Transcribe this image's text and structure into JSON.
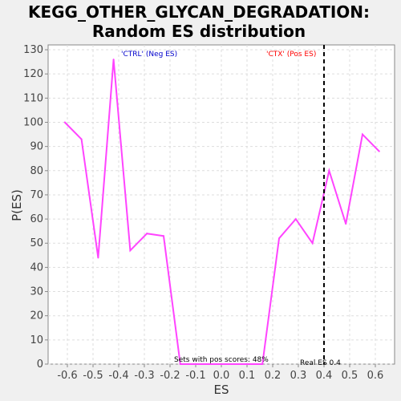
{
  "chart_data": {
    "type": "line",
    "title_line1": "KEGG_OTHER_GLYCAN_DEGRADATION:",
    "title_line2": "Random ES distribution",
    "xlabel": "ES",
    "ylabel": "P(ES)",
    "xlim": [
      -0.675,
      0.675
    ],
    "ylim": [
      0,
      132
    ],
    "xticks": [
      -0.6,
      -0.5,
      -0.4,
      -0.3,
      -0.2,
      -0.1,
      0.0,
      0.1,
      0.2,
      0.3,
      0.4,
      0.5,
      0.6
    ],
    "xtick_labels": [
      "-0.6",
      "-0.5",
      "-0.4",
      "-0.3",
      "-0.2",
      "-0.1",
      "0.0",
      "0.1",
      "0.2",
      "0.3",
      "0.4",
      "0.5",
      "0.6"
    ],
    "yticks": [
      0,
      10,
      20,
      30,
      40,
      50,
      60,
      70,
      80,
      90,
      100,
      110,
      120,
      130
    ],
    "grid": true,
    "series": [
      {
        "color": "#ff44ff",
        "x": [
          -0.61,
          -0.545,
          -0.48,
          -0.42,
          -0.355,
          -0.29,
          -0.225,
          -0.16,
          -0.095,
          -0.03,
          0.035,
          0.1,
          0.16,
          0.225,
          0.29,
          0.355,
          0.42,
          0.485,
          0.55,
          0.615
        ],
        "y": [
          100,
          93,
          44,
          126,
          47,
          54,
          53,
          0,
          0,
          0,
          0,
          0,
          0,
          52,
          60,
          50,
          80,
          58,
          95,
          88
        ]
      }
    ],
    "real_es": 0.4,
    "annotations": {
      "neg_label": "'CTRL' (Neg ES)",
      "pos_label": "'CTX' (Pos ES)",
      "pos_scores": "Sets with pos scores: 48%",
      "real_es_label": "Real ES 0.4"
    },
    "colors": {
      "neg_label": "#0000cc",
      "pos_label": "#ff0000",
      "line": "#ff44ff",
      "grid": "#dddddd",
      "plot_bg": "#ffffff",
      "page_bg": "#f0f0f0"
    }
  }
}
